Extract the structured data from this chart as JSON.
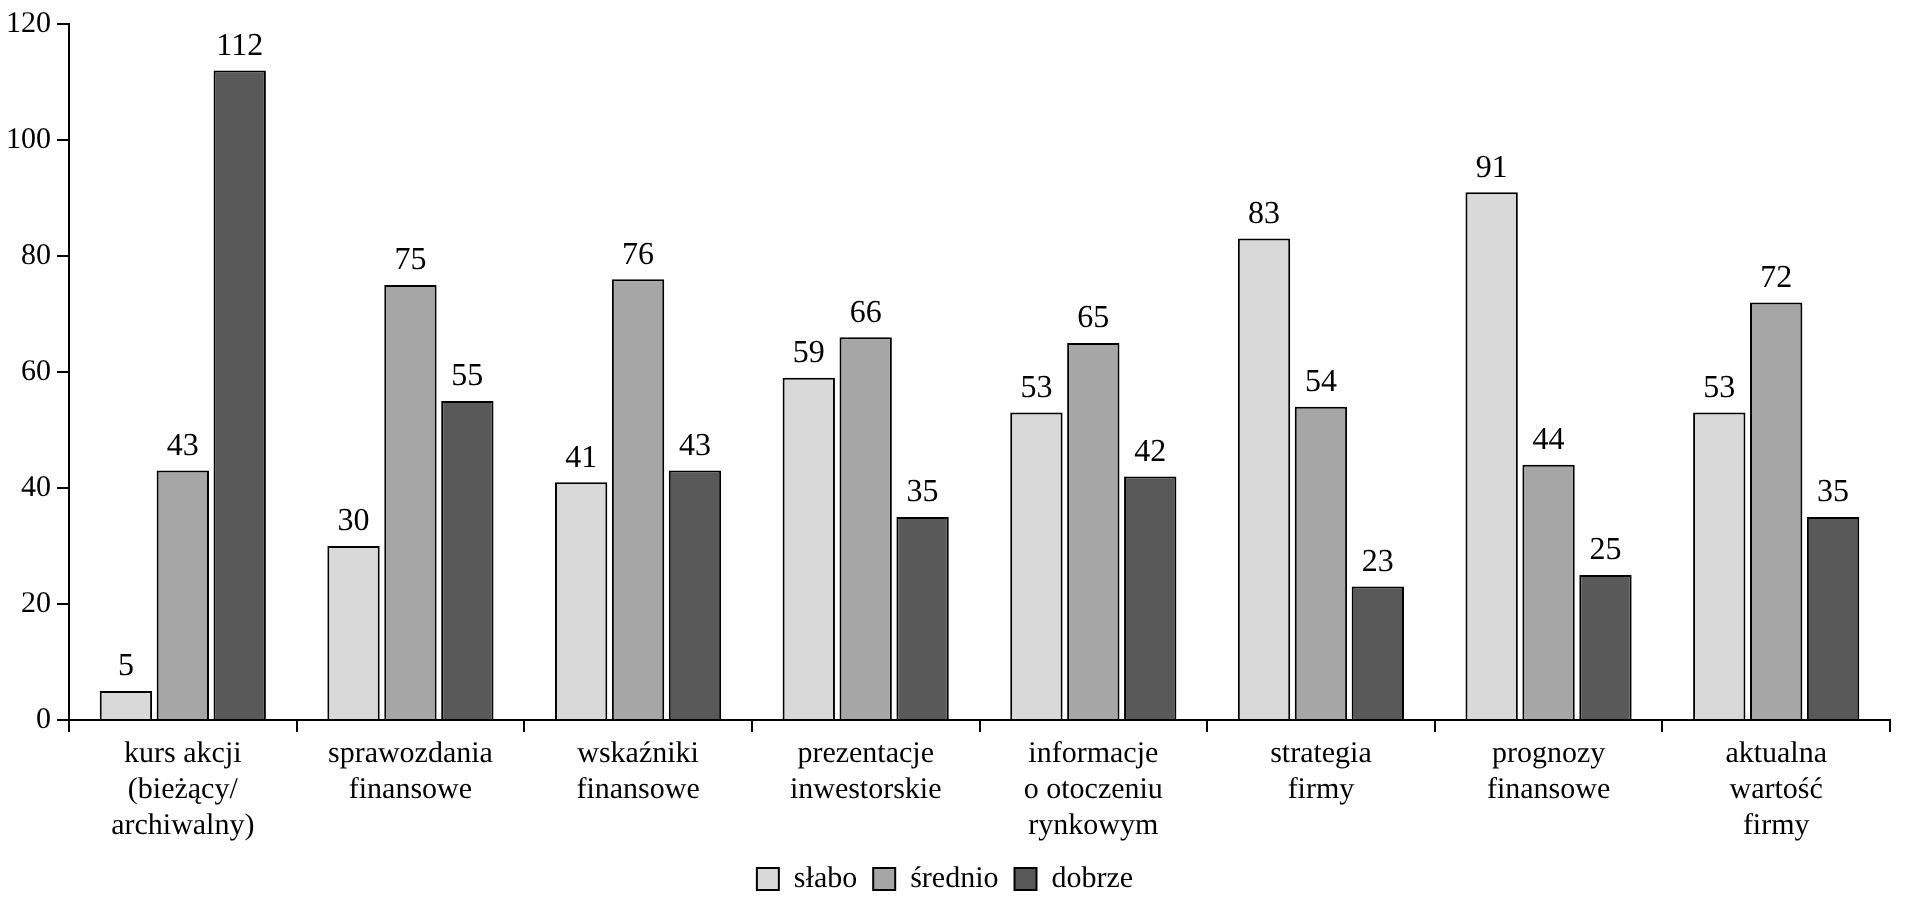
{
  "chart_data": {
    "type": "bar",
    "categories": [
      "kurs akcji\n(bieżący/\narchiwalny)",
      "sprawozdania\nfinansowe",
      "wskaźniki\nfinansowe",
      "prezentacje\ninwestorskie",
      "informacje\no otoczeniu\nrynkowym",
      "strategia\nfirmy",
      "prognozy\nfinansowe",
      "aktualna\nwartość\nfirmy"
    ],
    "series": [
      {
        "name": "słabo",
        "color": "#d9d9d9",
        "values": [
          5,
          30,
          41,
          59,
          53,
          83,
          91,
          53
        ]
      },
      {
        "name": "średnio",
        "color": "#a6a6a6",
        "values": [
          43,
          75,
          76,
          66,
          65,
          54,
          44,
          72
        ]
      },
      {
        "name": "dobrze",
        "color": "#595959",
        "values": [
          112,
          55,
          43,
          35,
          42,
          23,
          25,
          35
        ]
      }
    ],
    "ylim": [
      0,
      120
    ],
    "yticks": [
      0,
      20,
      40,
      60,
      80,
      100,
      120
    ],
    "grid": false,
    "legend": "bottom",
    "data_labels": true
  }
}
